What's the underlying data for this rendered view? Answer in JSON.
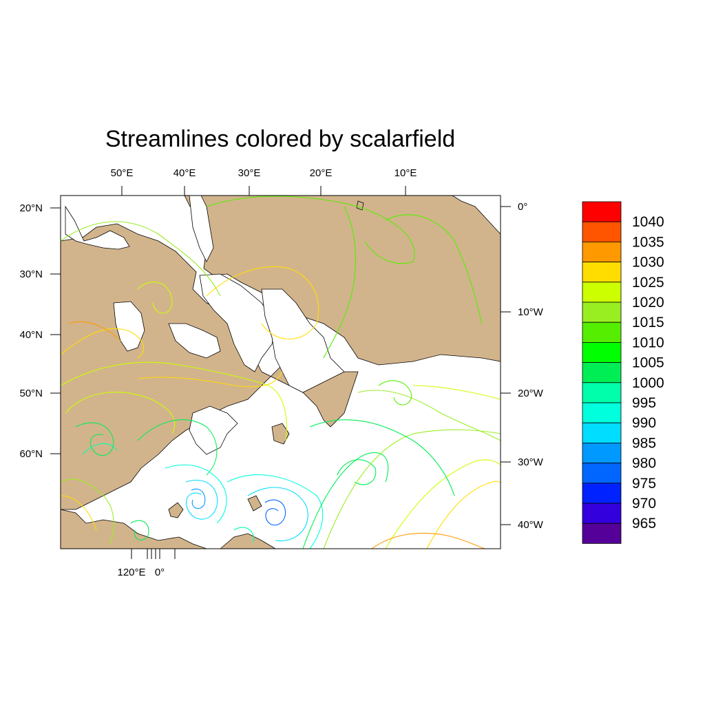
{
  "title": "Streamlines colored by scalarfield",
  "colors": {
    "land": "#d2b48c",
    "water": "#ffffff",
    "coast": "#000000"
  },
  "axes": {
    "top_ticks": [
      "50°E",
      "40°E",
      "30°E",
      "20°E",
      "10°E"
    ],
    "left_ticks": [
      "20°N",
      "30°N",
      "40°N",
      "50°N",
      "60°N"
    ],
    "right_ticks": [
      "0°",
      "10°W",
      "20°W",
      "30°W",
      "40°W"
    ],
    "bottom_ticks": [
      "120°E",
      "0°"
    ]
  },
  "colorbar": {
    "labels": [
      "1040",
      "1035",
      "1030",
      "1025",
      "1020",
      "1015",
      "1010",
      "1005",
      "1000",
      "995",
      "990",
      "985",
      "980",
      "975",
      "970",
      "965"
    ],
    "colors": [
      "#ff0000",
      "#ff5500",
      "#ff9900",
      "#ffdd00",
      "#ccff00",
      "#99ee22",
      "#55ee00",
      "#00ff00",
      "#00ee55",
      "#00ffaa",
      "#00ffdd",
      "#00ddff",
      "#0099ff",
      "#0066ff",
      "#0022ff",
      "#3300dd",
      "#550099"
    ]
  }
}
